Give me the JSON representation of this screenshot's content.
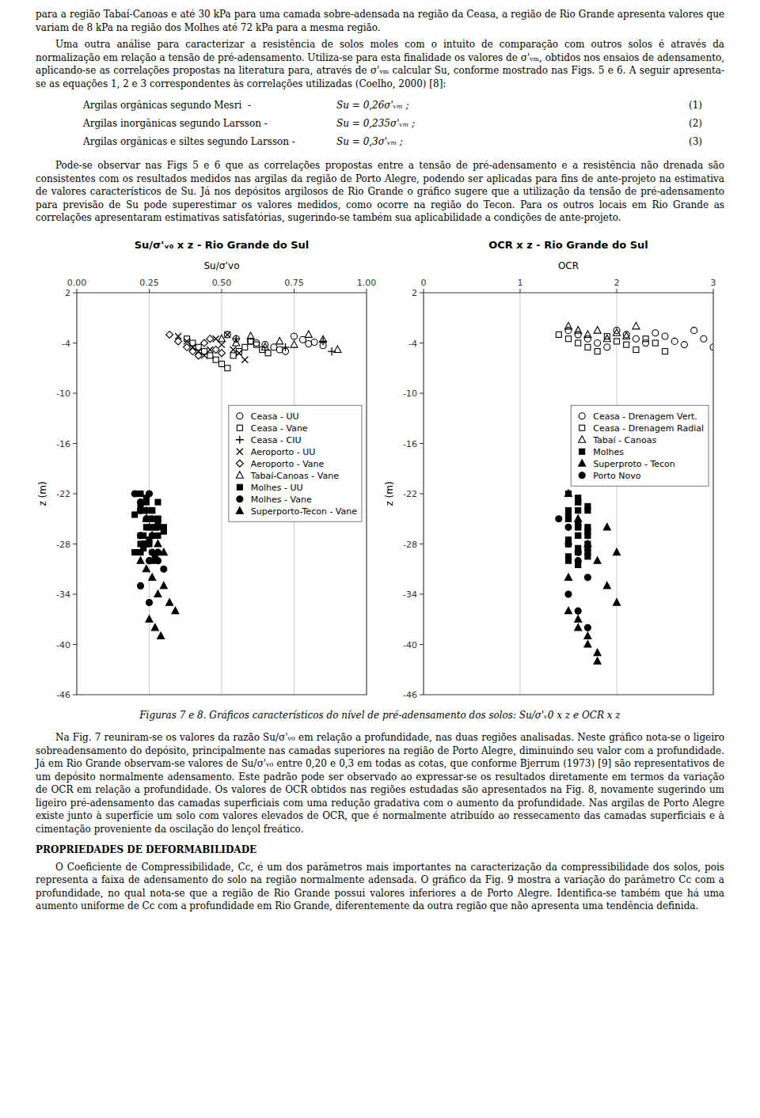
{
  "page": {
    "paragraphs_before": [
      "para a região Tabaí-Canoas e até 30 kPa para uma camada sobre-adensada na região da Ceasa, a região de Rio Grande apresenta valores que variam de 8 kPa na região dos Molhes até 72 kPa para a mesma região.",
      "Uma outra análise para caracterizar a resistência de solos moles com o intuito de comparação com outros solos é através da normalização em relação a tensão de pré-adensamento. Utiliza-se para esta finalidade os valores de σ'ᵥₘ, obtidos nos ensaios de adensamento, aplicando-se as correlações propostas na literatura para, através de σ'ᵥₘ calcular Su, conforme mostrado nas Figs. 5 e 6. A seguir apresenta-se as equações 1, 2 e 3 correspondentes às correlações utilizadas (Coelho, 2000) [8]:"
    ],
    "equations": [
      {
        "text": "Argilas orgânicas segundo Mesri  -",
        "formula": "Su = 0,26σ'ᵥₘ ;",
        "number": "(1)"
      },
      {
        "text": "Argilas inorgânicas segundo Larsson -",
        "formula": "Su = 0,235σ'ᵥₘ ;",
        "number": "(2)"
      },
      {
        "text": "Argilas orgânicas e siltes segundo Larsson -",
        "formula": "Su = 0,3σ'ᵥₘ ;",
        "number": "(3)"
      }
    ],
    "paragraphs_middle": [
      "Pode-se observar nas Figs 5 e 6 que as correlações propostas entre a tensão de pré-adensamento e a resistência não drenada são consistentes com os resultados medidos nas argilas da região de Porto Alegre, podendo ser aplicadas para fins de ante-projeto na estimativa de valores característicos de Su. Já nos depósitos argilosos de Rio Grande o gráfico sugere que a utilização da tensão de pré-adensamento para previsão de Su pode superestimar os valores medidos, como ocorre na região do Tecon. Para os outros locais em Rio Grande as correlações apresentaram estimativas satisfatórias, sugerindo-se também sua aplicabilidade a condições de ante-projeto."
    ],
    "caption": "Figuras 7 e 8. Gráficos característicos do nível de pré-adensamento dos solos: Su/σ'ᵥ0 x z e OCR x z",
    "paragraphs_after": [
      "Na Fig. 7 reuniram-se os valores da razão Su/σ'ᵥ₀ em relação a profundidade, nas duas regiões analisadas. Neste gráfico nota-se o ligeiro sobreadensamento do depósito, principalmente nas camadas superiores na região de Porto Alegre, diminuindo seu valor com a profundidade. Já em Rio Grande observam-se valores de Su/σ'ᵥ₀ entre 0,20 e 0,3 em todas as cotas, que conforme Bjerrum (1973) [9] são representativos de um depósito normalmente adensamento. Este padrão pode ser observado ao expressar-se os resultados diretamente em termos da variação de OCR em relação a profundidade. Os valores de OCR obtidos nas regiões estudadas são apresentados na Fig. 8, novamente sugerindo um ligeiro pré-adensamento das camadas superficiais com uma redução gradativa com o aumento da profundidade. Nas argilas de Porto Alegre existe junto à superfície um solo com valores elevados de OCR, que é normalmente atribuído ao ressecamento das camadas superficiais e à cimentação proveniente da oscilação do lençol freático."
    ],
    "heading": "PROPRIEDADES DE DEFORMABILIDADE",
    "paragraphs_end": [
      "O Coeficiente de Compressibilidade, Cc, é um dos parâmetros mais importantes na caracterização da compressibilidade dos solos, pois representa a faixa de adensamento do solo na região normalmente adensada. O gráfico da Fig. 9 mostra a variação do parâmetro Cc com a profundidade, no qual nota-se que a região de Rio Grande possui valores inferiores a de Porto Alegre. Identifica-se também que há uma aumento uniforme de Cc com a profundidade em Rio Grande, diferentemente da outra região que não apresenta uma tendência definida."
    ]
  },
  "chart_data": [
    {
      "type": "scatter",
      "title": "Su/σ'ᵥ₀ x z - Rio Grande do Sul",
      "xlabel": "Su/σ’vo",
      "ylabel": "z (m)",
      "xlim": [
        0.0,
        1.0
      ],
      "ylim": [
        -46,
        2
      ],
      "xticks": [
        {
          "value": 0.0,
          "label": "0.00"
        },
        0.25,
        {
          "value": 0.5,
          "label": "0.50"
        },
        0.75,
        {
          "value": 1.0,
          "label": "1.00"
        }
      ],
      "yticks": [
        2,
        -4,
        -10,
        -16,
        -22,
        -28,
        -34,
        -40,
        -46
      ],
      "grid": "x",
      "legend": "upper right",
      "series": [
        {
          "name": "Ceasa - UU",
          "color": "#000000",
          "marker": "circle-open",
          "x": [
            0.52,
            0.55,
            0.6,
            0.62,
            0.65,
            0.68,
            0.7,
            0.72,
            0.75,
            0.78,
            0.8,
            0.82,
            0.85
          ],
          "values": [
            -3.0,
            -3.5,
            -3.8,
            -4.0,
            -4.2,
            -4.5,
            -4.8,
            -5.0,
            -3.2,
            -3.6,
            -4.1,
            -3.9,
            -4.3
          ]
        },
        {
          "name": "Ceasa - Vane",
          "color": "#000000",
          "marker": "square-open",
          "x": [
            0.38,
            0.4,
            0.42,
            0.44,
            0.46,
            0.48,
            0.5,
            0.52,
            0.54,
            0.56,
            0.58,
            0.6,
            0.62,
            0.64,
            0.66
          ],
          "values": [
            -3.5,
            -4.0,
            -4.5,
            -5.0,
            -5.5,
            -6.0,
            -6.5,
            -7.0,
            -5.5,
            -5.0,
            -4.5,
            -3.8,
            -4.2,
            -4.8,
            -5.2
          ]
        },
        {
          "name": "Ceasa - CIU",
          "color": "#000000",
          "marker": "plus",
          "x": [
            0.55,
            0.72,
            0.85,
            0.88
          ],
          "values": [
            -3.5,
            -4.5,
            -3.8,
            -5.0
          ]
        },
        {
          "name": "Aeroporto - UU",
          "color": "#000000",
          "marker": "x",
          "x": [
            0.35,
            0.38,
            0.4,
            0.42,
            0.44,
            0.46,
            0.48,
            0.5,
            0.52,
            0.54,
            0.56,
            0.58
          ],
          "values": [
            -3.2,
            -3.8,
            -4.5,
            -5.0,
            -5.5,
            -4.8,
            -3.5,
            -4.2,
            -3.0,
            -4.8,
            -5.2,
            -6.0
          ]
        },
        {
          "name": "Aeroporto - Vane",
          "color": "#000000",
          "marker": "diamond-open",
          "x": [
            0.32,
            0.35,
            0.38,
            0.4,
            0.42,
            0.44,
            0.46,
            0.48,
            0.5
          ],
          "values": [
            -3.0,
            -3.8,
            -4.5,
            -5.0,
            -5.5,
            -4.0,
            -3.5,
            -4.8,
            -5.2
          ]
        },
        {
          "name": "Tabaí-Canoas - Vane",
          "color": "#000000",
          "marker": "triangle-open",
          "x": [
            0.5,
            0.55,
            0.6,
            0.65,
            0.7,
            0.75,
            0.8,
            0.85,
            0.9
          ],
          "values": [
            -3.5,
            -4.0,
            -3.2,
            -4.5,
            -3.8,
            -4.2,
            -3.0,
            -3.6,
            -4.8
          ]
        },
        {
          "name": "Molhes - UU",
          "color": "#000000",
          "marker": "square",
          "x": [
            0.22,
            0.24,
            0.26,
            0.28,
            0.3,
            0.28,
            0.25,
            0.22,
            0.26,
            0.24,
            0.22,
            0.2,
            0.28,
            0.3,
            0.25,
            0.23,
            0.27,
            0.21,
            0.26,
            0.24,
            0.22,
            0.28,
            0.25,
            0.23,
            0.2,
            0.22,
            0.26,
            0.24,
            0.28,
            0.22
          ],
          "values": [
            -22,
            -23,
            -24,
            -25,
            -26,
            -27,
            -28,
            -29,
            -30,
            -22.5,
            -23.5,
            -24.5,
            -25.5,
            -26.5,
            -27.5,
            -28.5,
            -29.5,
            -22,
            -24,
            -26,
            -28,
            -23,
            -25,
            -27,
            -29,
            -24,
            -26,
            -28,
            -25,
            -27
          ]
        },
        {
          "name": "Molhes - Vane",
          "color": "#000000",
          "marker": "circle",
          "x": [
            0.2,
            0.22,
            0.24,
            0.26,
            0.28,
            0.22,
            0.24,
            0.26,
            0.28,
            0.3,
            0.25,
            0.22,
            0.27,
            0.23,
            0.25,
            0.24,
            0.26,
            0.28,
            0.22,
            0.25
          ],
          "values": [
            -22,
            -23,
            -24,
            -25,
            -26,
            -27,
            -28,
            -29,
            -30,
            -31,
            -22,
            -24,
            -26,
            -28,
            -30,
            -25,
            -27,
            -29,
            -33,
            -35
          ]
        },
        {
          "name": "Superporto-Tecon - Vane",
          "color": "#000000",
          "marker": "triangle",
          "x": [
            0.22,
            0.24,
            0.25,
            0.26,
            0.28,
            0.3,
            0.22,
            0.24,
            0.26,
            0.3,
            0.28,
            0.32,
            0.34,
            0.25,
            0.27,
            0.29
          ],
          "values": [
            -24,
            -25,
            -26,
            -27,
            -28,
            -29,
            -30,
            -31,
            -32,
            -33,
            -34,
            -35,
            -36,
            -37,
            -38,
            -39
          ]
        }
      ]
    },
    {
      "type": "scatter",
      "title": "OCR x z - Rio Grande do Sul",
      "xlabel": "OCR",
      "ylabel": "z (m)",
      "xlim": [
        0,
        3
      ],
      "ylim": [
        -46,
        2
      ],
      "xticks": [
        0,
        1,
        2,
        3
      ],
      "yticks": [
        2,
        -4,
        -10,
        -16,
        -22,
        -28,
        -34,
        -40,
        -46
      ],
      "grid": "x",
      "legend": "upper right",
      "series": [
        {
          "name": "Ceasa - Drenagem Vert.",
          "color": "#000000",
          "marker": "circle-open",
          "x": [
            1.5,
            1.6,
            1.7,
            1.8,
            1.9,
            2.0,
            2.1,
            2.2,
            2.3,
            2.4,
            2.5,
            2.6,
            2.7,
            2.8,
            2.9,
            3.0
          ],
          "values": [
            -2.5,
            -3.0,
            -3.5,
            -4.0,
            -4.5,
            -2.5,
            -3.0,
            -3.5,
            -4.0,
            -2.8,
            -3.2,
            -3.8,
            -4.2,
            -2.5,
            -3.5,
            -4.5
          ]
        },
        {
          "name": "Ceasa - Drenagem Radial",
          "color": "#000000",
          "marker": "square-open",
          "x": [
            1.4,
            1.5,
            1.6,
            1.7,
            1.8,
            1.9,
            2.0,
            2.1,
            2.2,
            2.3,
            2.4,
            2.5
          ],
          "values": [
            -3.0,
            -3.5,
            -4.0,
            -4.5,
            -5.0,
            -3.2,
            -3.8,
            -4.2,
            -4.8,
            -3.5,
            -4.0,
            -5.0
          ]
        },
        {
          "name": "Tabaí - Canoas",
          "color": "#000000",
          "marker": "triangle-open",
          "x": [
            1.5,
            1.6,
            1.7,
            1.8,
            1.9,
            2.0,
            2.1,
            2.2
          ],
          "values": [
            -2.0,
            -2.5,
            -3.0,
            -2.5,
            -3.5,
            -2.8,
            -3.2,
            -2.0
          ]
        },
        {
          "name": "Molhes",
          "color": "#000000",
          "marker": "square",
          "x": [
            1.5,
            1.6,
            1.7,
            1.5,
            1.6,
            1.7,
            1.5,
            1.6,
            1.5,
            1.6,
            1.7,
            1.5,
            1.6,
            1.7,
            1.5,
            1.6,
            1.7,
            1.5,
            1.6,
            1.7,
            1.5,
            1.6,
            1.5,
            1.6,
            1.7,
            1.5,
            1.6,
            1.7,
            1.5,
            1.6,
            1.7,
            1.5,
            1.6
          ],
          "values": [
            -22,
            -23,
            -24,
            -25,
            -26,
            -27,
            -28,
            -29,
            -30,
            -22.5,
            -23.5,
            -24.5,
            -25.5,
            -26.5,
            -27.5,
            -28.5,
            -29.5,
            -22,
            -24,
            -26,
            -28,
            -23,
            -25,
            -27,
            -29,
            -24,
            -26,
            -28,
            -25,
            -27,
            -28.5,
            -29.5,
            -30.5
          ]
        },
        {
          "name": "Superproto - Tecon",
          "color": "#000000",
          "marker": "triangle",
          "x": [
            1.5,
            1.6,
            1.7,
            1.8,
            1.9,
            2.0,
            1.5,
            1.6,
            1.7,
            1.8,
            1.9,
            2.0,
            1.5,
            1.6,
            1.7,
            1.8
          ],
          "values": [
            -22,
            -25,
            -28,
            -30,
            -33,
            -35,
            -36,
            -38,
            -40,
            -42,
            -26,
            -29,
            -32,
            -37,
            -39,
            -41
          ]
        },
        {
          "name": "Porto Novo",
          "color": "#000000",
          "marker": "circle",
          "x": [
            1.4,
            1.5,
            1.6,
            1.7,
            1.5,
            1.6,
            1.7,
            1.5,
            1.6
          ],
          "values": [
            -25,
            -28,
            -30,
            -32,
            -34,
            -36,
            -38,
            -26,
            -29
          ]
        }
      ]
    }
  ]
}
